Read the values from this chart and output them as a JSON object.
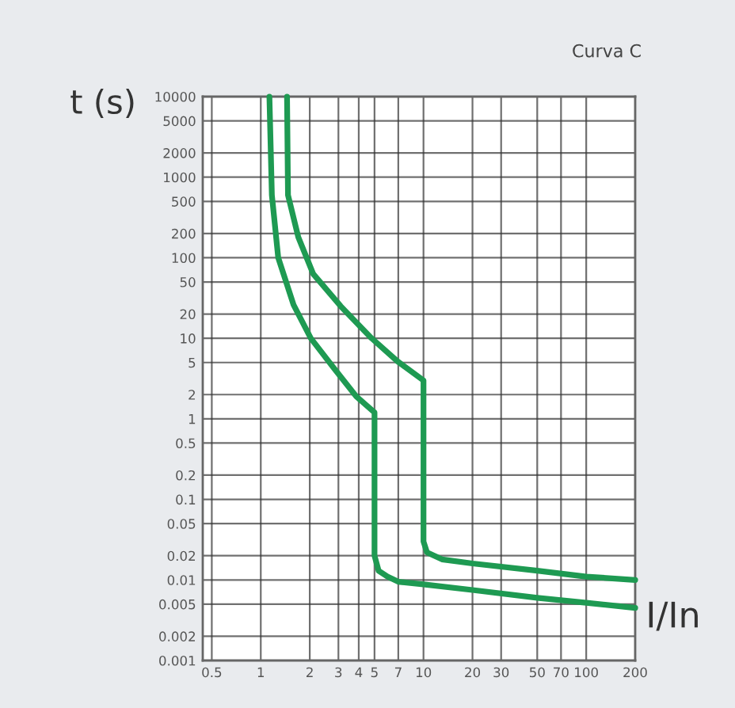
{
  "chart_data": {
    "type": "line",
    "title": "Curva C",
    "xlabel": "I/In",
    "ylabel": "t (s)",
    "log": "xy",
    "grid": true,
    "marker": "none",
    "line_style": "solid",
    "xlim": [
      0.44,
      200
    ],
    "xticks": [
      0.5,
      1,
      2,
      3,
      4,
      5,
      7,
      10,
      20,
      30,
      50,
      70,
      100,
      200
    ],
    "ylim": [
      0.001,
      10000
    ],
    "yticks": [
      0.001,
      0.002,
      0.005,
      0.01,
      0.02,
      0.05,
      0.1,
      0.2,
      0.5,
      1,
      2,
      5,
      10,
      20,
      50,
      100,
      200,
      500,
      1000,
      2000,
      5000,
      10000
    ],
    "series": [
      {
        "color": "#1e9a52",
        "x": [
          1.13,
          1.17,
          1.28,
          1.59,
          2.03,
          2.83,
          3.86,
          5,
          5,
          5.3,
          6,
          7,
          10,
          20,
          50,
          100,
          200
        ],
        "values": [
          10000,
          600,
          100,
          26,
          10,
          4.2,
          1.9,
          1.2,
          0.02,
          0.013,
          0.011,
          0.0095,
          0.0088,
          0.0075,
          0.006,
          0.0052,
          0.0045
        ]
      },
      {
        "color": "#1e9a52",
        "x": [
          1.45,
          1.47,
          1.7,
          2.1,
          3.1,
          4.8,
          6.9,
          10,
          10,
          10.5,
          13,
          20,
          50,
          100,
          200
        ],
        "values": [
          10000,
          600,
          180,
          63,
          25,
          10,
          5.2,
          3,
          0.03,
          0.022,
          0.018,
          0.016,
          0.013,
          0.011,
          0.01
        ]
      }
    ]
  }
}
